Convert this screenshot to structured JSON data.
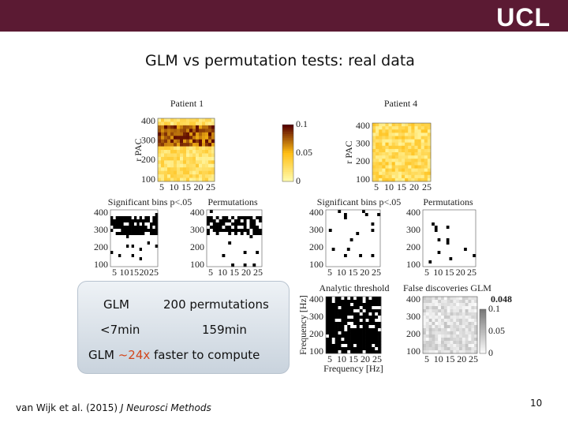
{
  "header": {
    "logo": "UCL"
  },
  "title": "GLM vs permutation tests: real data",
  "panels": [
    {
      "title": "Patient 1",
      "ylabel": "r PAC",
      "yticks": [
        "400",
        "300",
        "200",
        "100"
      ],
      "xticks": [
        "5",
        "10",
        "15",
        "20",
        "25"
      ],
      "colorbar_ticks": [
        "0.1",
        "0.05",
        "0"
      ]
    },
    {
      "title": "Patient 4",
      "ylabel": "r PAC",
      "yticks": [
        "400",
        "300",
        "200",
        "100"
      ],
      "xticks": [
        "5",
        "10",
        "15",
        "20",
        "25"
      ]
    },
    {
      "title": "Significant bins p<.05",
      "yticks": [
        "400",
        "300",
        "200",
        "100"
      ],
      "xticks": [
        "5",
        "10",
        "15",
        "20",
        "25"
      ]
    },
    {
      "title": "Permutations",
      "yticks": [
        "400",
        "300",
        "200",
        "100"
      ],
      "xticks": [
        "5",
        "10",
        "15",
        "20",
        "25"
      ]
    },
    {
      "title": "Significant bins p<.05",
      "yticks": [
        "400",
        "300",
        "200",
        "100"
      ],
      "xticks": [
        "5",
        "10",
        "15",
        "20",
        "25"
      ]
    },
    {
      "title": "Permutations",
      "yticks": [
        "400",
        "300",
        "200",
        "100"
      ],
      "xticks": [
        "5",
        "10",
        "15",
        "20",
        "25"
      ]
    },
    {
      "title": "Analytic threshold",
      "ylabel": "Frequency [Hz]",
      "xlabel": "Frequency [Hz]",
      "yticks": [
        "400",
        "300",
        "200",
        "100"
      ],
      "xticks": [
        "5",
        "10",
        "15",
        "20",
        "25"
      ]
    },
    {
      "title": "False discoveries GLM",
      "annotation": "0.048",
      "yticks": [
        "400",
        "300",
        "200",
        "100"
      ],
      "xticks": [
        "5",
        "10",
        "15",
        "20",
        "25"
      ],
      "colorbar_ticks": [
        "0.1",
        "0.05",
        "0"
      ]
    }
  ],
  "summary": {
    "col1": "GLM",
    "col2": "200 permutations",
    "time1": "<7min",
    "time2": "159min",
    "conclusion": {
      "before": "GLM ",
      "highlight": "~24x",
      "after": " faster to compute"
    }
  },
  "footer": {
    "citation": "van Wijk et al. (2015) ",
    "journal": "J Neurosci Methods",
    "page": "10"
  }
}
